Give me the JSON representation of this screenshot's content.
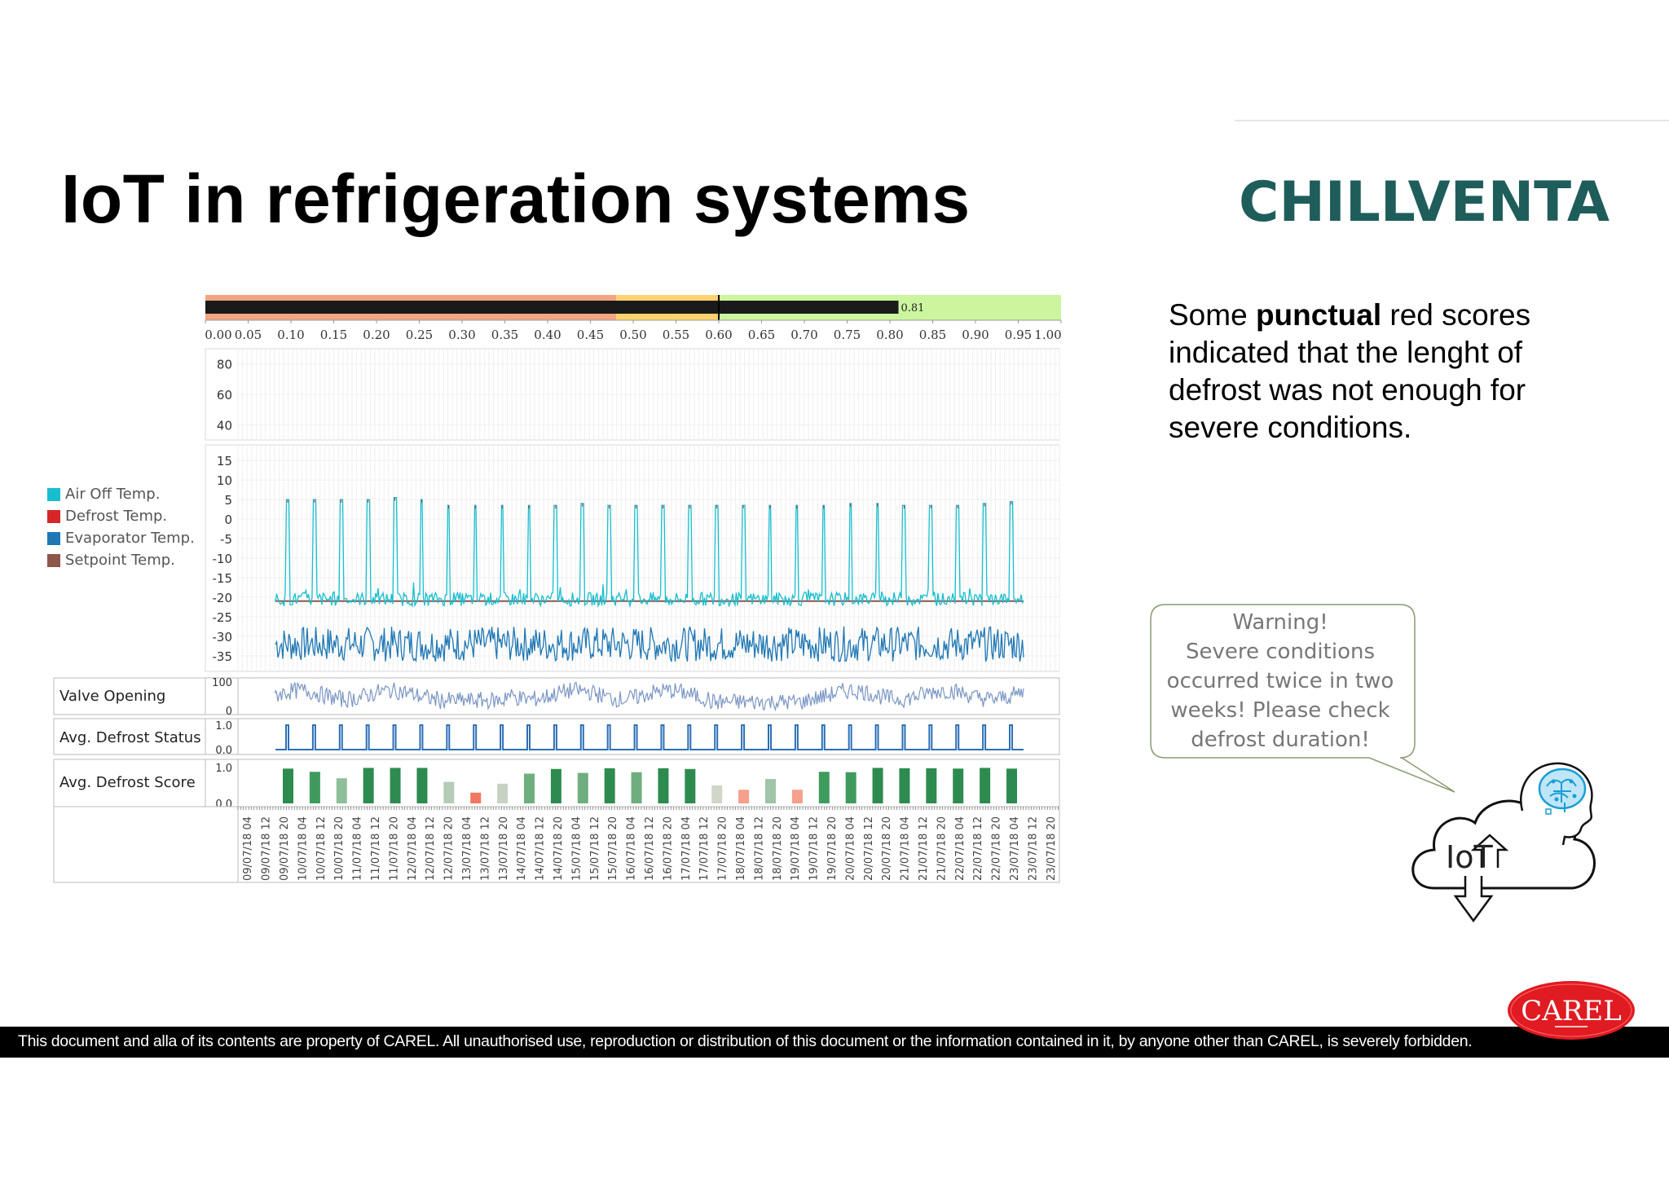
{
  "slide": {
    "title": "IoT in refrigeration systems",
    "brand_logo_text": "CHILLVENTA",
    "brand_color": "#1f5d5b",
    "description_parts": [
      {
        "text": "Some ",
        "bold": false
      },
      {
        "text": "punctual",
        "bold": true
      },
      {
        "text": " red scores indicated that the lenght of defrost was not enough for severe conditions.",
        "bold": false
      }
    ],
    "bubble_lines": [
      "Warning!",
      "Severe conditions",
      "occurred twice in two",
      "weeks! Please check",
      "defrost duration!"
    ],
    "iot_label": "IoT",
    "footer": "This document and alla of its contents are property of CAREL. All unauthorised use, reproduction or distribution of this document or the information contained in it, by anyone other than CAREL, is severely forbidden.",
    "company_logo_text": "CAREL",
    "company_logo_color": "#e01b22"
  },
  "legend": [
    {
      "label": "Air Off Temp.",
      "color": "#17becf"
    },
    {
      "label": "Defrost Temp.",
      "color": "#d62728"
    },
    {
      "label": "Evaporator Temp.",
      "color": "#1f77b4"
    },
    {
      "label": "Setpoint Temp.",
      "color": "#8c564b"
    }
  ],
  "panels": {
    "valve_label": "Valve Opening",
    "status_label": "Avg. Defrost Status",
    "score_label": "Avg. Defrost Score"
  },
  "chart_data": [
    {
      "type": "bar",
      "name": "score gauge",
      "value": 0.81,
      "value_label": "0.81",
      "marker": 0.6,
      "xlim": [
        0,
        1
      ],
      "ticks": [
        "0.00",
        "0.05",
        "0.10",
        "0.15",
        "0.20",
        "0.25",
        "0.30",
        "0.35",
        "0.40",
        "0.45",
        "0.50",
        "0.55",
        "0.60",
        "0.65",
        "0.70",
        "0.75",
        "0.80",
        "0.85",
        "0.90",
        "0.95",
        "1.00"
      ],
      "zones": [
        {
          "from": 0,
          "to": 0.48,
          "color": "#f4a582"
        },
        {
          "from": 0.48,
          "to": 0.6,
          "color": "#fdd26e"
        },
        {
          "from": 0.6,
          "to": 1,
          "color": "#ccf5a0"
        }
      ],
      "bar_color": "#1a1a1a"
    },
    {
      "type": "line",
      "name": "upper temperature panel",
      "yticks": [
        80,
        60,
        40
      ],
      "ylim": [
        30,
        90
      ],
      "series": []
    },
    {
      "type": "line",
      "name": "temperatures",
      "yticks": [
        15,
        10,
        5,
        0,
        -5,
        -10,
        -15,
        -20,
        -25,
        -30,
        -35
      ],
      "ylim": [
        -39,
        19
      ],
      "air_off_baseline": -20.5,
      "evaporator_baseline": -32,
      "setpoint": -21,
      "defrost_peaks": [
        5,
        5,
        5,
        5,
        5.5,
        5,
        3.5,
        3.5,
        3.5,
        3.5,
        3.5,
        4,
        3.5,
        3.5,
        3.5,
        3.5,
        3.5,
        3.5,
        3.5,
        3.5,
        3.5,
        4,
        4,
        3.5,
        3.5,
        3.5,
        4,
        4.5
      ]
    },
    {
      "type": "line",
      "name": "Valve Opening",
      "yticks": [
        100,
        0
      ],
      "ylim": [
        0,
        100
      ]
    },
    {
      "type": "line",
      "name": "Avg. Defrost Status",
      "yticks": [
        "1.0",
        "0.0"
      ],
      "ylim": [
        0,
        1
      ]
    },
    {
      "type": "bar",
      "name": "Avg. Defrost Score",
      "yticks": [
        "1.0",
        "0.0"
      ],
      "ylim": [
        0,
        1
      ],
      "categories": [
        "09/07/18 04",
        "09/07/18 12",
        "09/07/18 20",
        "10/07/18 04",
        "10/07/18 12",
        "10/07/18 20",
        "11/07/18 04",
        "11/07/18 12",
        "11/07/18 20",
        "12/07/18 04",
        "12/07/18 12",
        "12/07/18 20",
        "13/07/18 04",
        "13/07/18 12",
        "13/07/18 20",
        "14/07/18 04",
        "14/07/18 12",
        "14/07/18 20",
        "15/07/18 04",
        "15/07/18 12",
        "15/07/18 20",
        "16/07/18 04",
        "16/07/18 12",
        "16/07/18 20",
        "17/07/18 04",
        "17/07/18 12",
        "17/07/18 20",
        "18/07/18 04",
        "18/07/18 12",
        "18/07/18 20",
        "19/07/18 04",
        "19/07/18 12",
        "19/07/18 20",
        "20/07/18 04",
        "20/07/18 12",
        "20/07/18 20",
        "21/07/18 04",
        "21/07/18 12",
        "21/07/18 20",
        "22/07/18 04",
        "22/07/18 12",
        "22/07/18 20",
        "23/07/18 04",
        "23/07/18 12",
        "23/07/18 20"
      ],
      "bars": [
        {
          "value": 0.97,
          "color": "#2e8b50"
        },
        {
          "value": 0.88,
          "color": "#3f9a5e"
        },
        {
          "value": 0.7,
          "color": "#8fbf9a"
        },
        {
          "value": 0.99,
          "color": "#2e8b50"
        },
        {
          "value": 0.99,
          "color": "#2e8b50"
        },
        {
          "value": 0.99,
          "color": "#2e8b50"
        },
        {
          "value": 0.6,
          "color": "#b4ccb6"
        },
        {
          "value": 0.3,
          "color": "#f07860"
        },
        {
          "value": 0.55,
          "color": "#c8d2c4"
        },
        {
          "value": 0.83,
          "color": "#6eae7e"
        },
        {
          "value": 0.96,
          "color": "#2e8b50"
        },
        {
          "value": 0.85,
          "color": "#6eae7e"
        },
        {
          "value": 0.98,
          "color": "#2e8b50"
        },
        {
          "value": 0.87,
          "color": "#6eae7e"
        },
        {
          "value": 0.98,
          "color": "#2e8b50"
        },
        {
          "value": 0.96,
          "color": "#2e8b50"
        },
        {
          "value": 0.5,
          "color": "#d0d6c8"
        },
        {
          "value": 0.38,
          "color": "#f4a08a"
        },
        {
          "value": 0.68,
          "color": "#9fc4a8"
        },
        {
          "value": 0.38,
          "color": "#f4a08a"
        },
        {
          "value": 0.88,
          "color": "#3f9a5e"
        },
        {
          "value": 0.87,
          "color": "#3f9a5e"
        },
        {
          "value": 0.99,
          "color": "#2e8b50"
        },
        {
          "value": 0.98,
          "color": "#2e8b50"
        },
        {
          "value": 0.98,
          "color": "#2e8b50"
        },
        {
          "value": 0.97,
          "color": "#2e8b50"
        },
        {
          "value": 0.99,
          "color": "#2e8b50"
        },
        {
          "value": 0.97,
          "color": "#2e8b50"
        }
      ]
    }
  ]
}
